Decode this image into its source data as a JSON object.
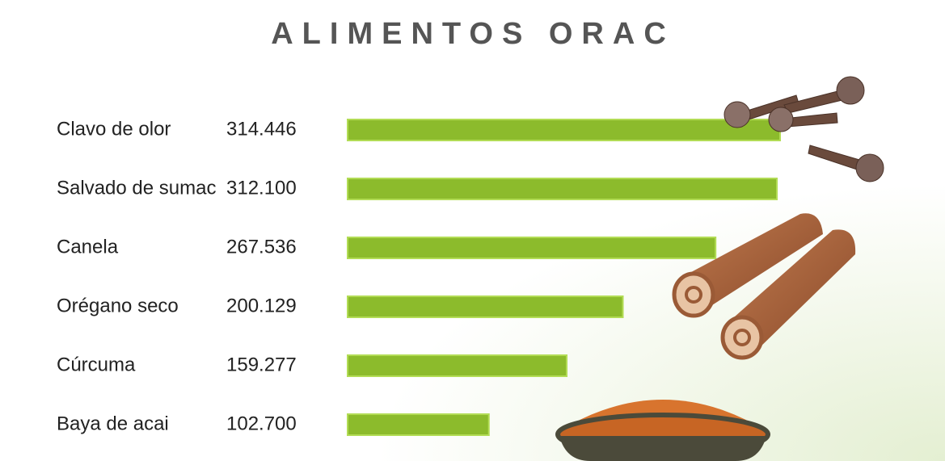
{
  "chart_data": {
    "type": "bar",
    "orientation": "horizontal",
    "title": "ALIMENTOS ORAC",
    "categories": [
      "Clavo de olor",
      "Salvado de sumac",
      "Canela",
      "Orégano seco",
      "Cúrcuma",
      "Baya de acai"
    ],
    "values": [
      314446,
      312100,
      267536,
      200129,
      159277,
      102700
    ],
    "value_labels": [
      "314.446",
      "312.100",
      "267.536",
      "200.129",
      "159.277",
      "102.700"
    ],
    "color": "#8cbb2c"
  }
}
